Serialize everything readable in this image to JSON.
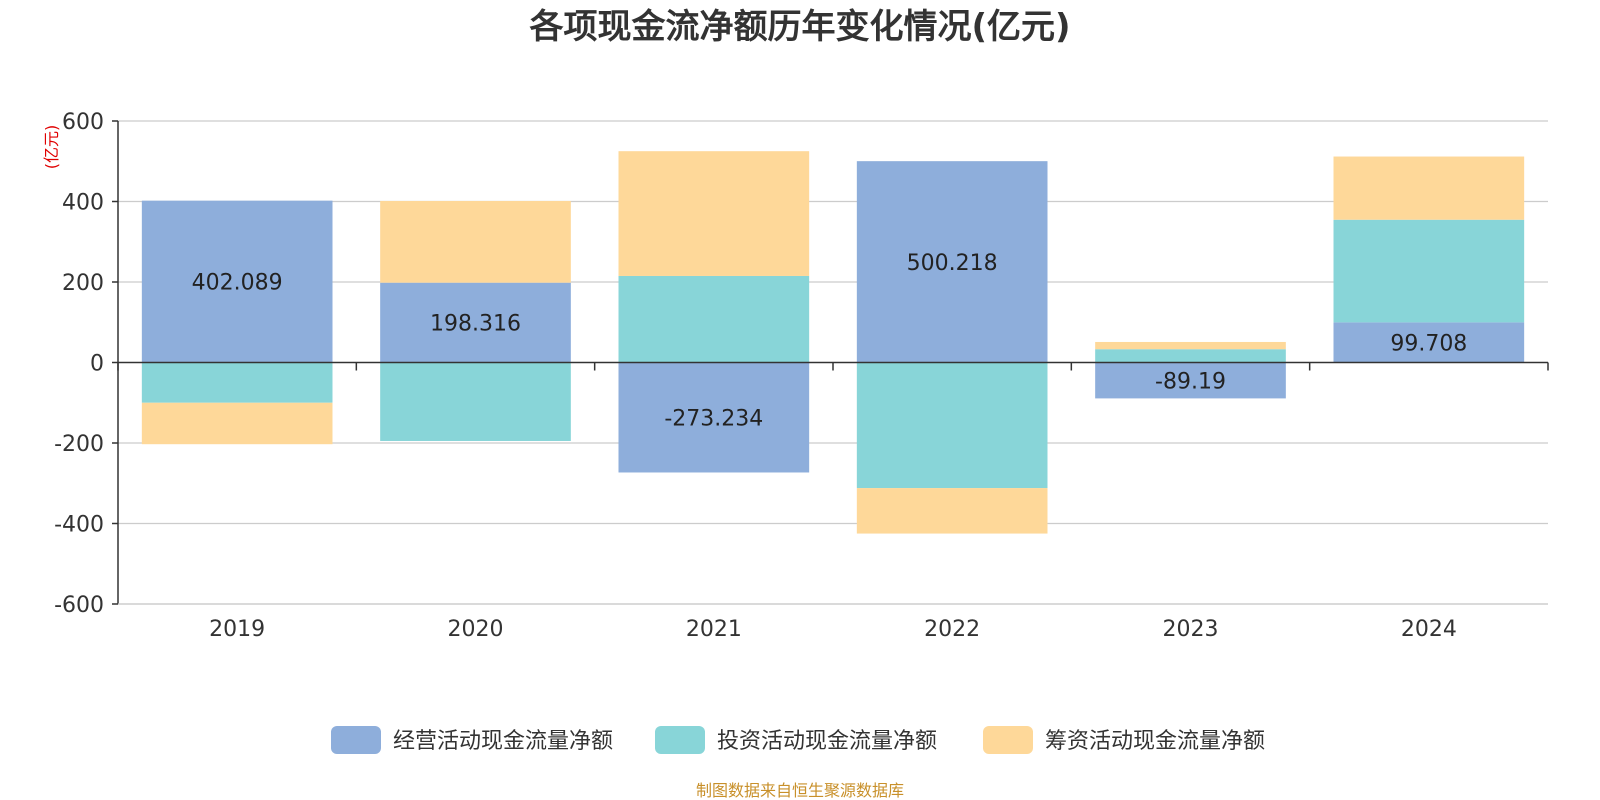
{
  "chart_data": {
    "type": "bar",
    "stacked": true,
    "title": "各项现金流净额历年变化情况(亿元)",
    "ylabel": "(亿元)",
    "ylim": [
      -600,
      600
    ],
    "yticks": [
      600,
      400,
      200,
      0,
      -200,
      -400,
      -600
    ],
    "categories": [
      "2019",
      "2020",
      "2021",
      "2022",
      "2023",
      "2024"
    ],
    "series": [
      {
        "name": "经营活动现金流量净额",
        "color": "#8eaedb",
        "values": [
          402.089,
          198.316,
          -273.234,
          500.218,
          -89.19,
          99.708
        ]
      },
      {
        "name": "投资活动现金流量净额",
        "color": "#88d5d8",
        "values": [
          -100,
          -195,
          215,
          -312,
          33,
          255
        ]
      },
      {
        "name": "筹资活动现金流量净额",
        "color": "#fed899",
        "values": [
          -103,
          203,
          310,
          -113,
          18,
          157
        ]
      }
    ],
    "data_labels": [
      "402.089",
      "198.316",
      "-273.234",
      "500.218",
      "-89.19",
      "99.708"
    ],
    "legend_position": "bottom",
    "grid": true
  },
  "source": "制图数据来自恒生聚源数据库"
}
